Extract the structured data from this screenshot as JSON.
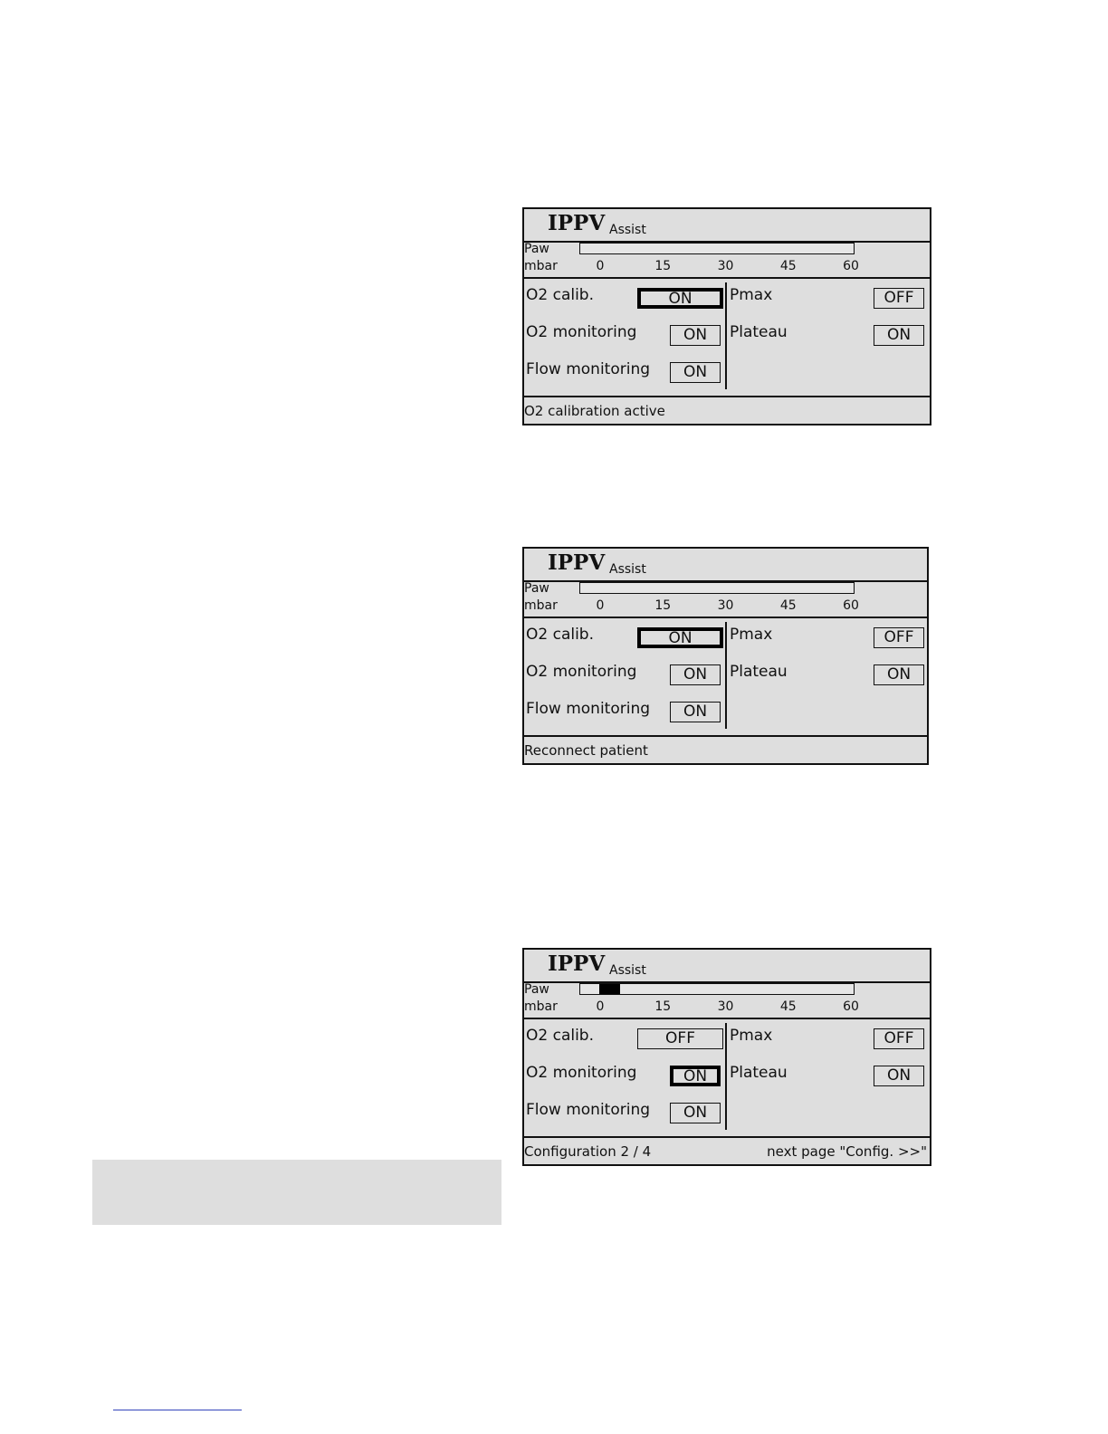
{
  "screens": [
    {
      "title": "IPPV",
      "subtitle": "Assist",
      "paw_label": "Paw",
      "unit_label": "mbar",
      "scale_ticks": [
        "0",
        "15",
        "30",
        "45",
        "60"
      ],
      "paw_level_mbar": 0,
      "left_settings": [
        {
          "label": "O2 calib.",
          "value": "ON",
          "selected": true
        },
        {
          "label": "O2 monitoring",
          "value": "ON",
          "selected": false
        },
        {
          "label": "Flow monitoring",
          "value": "ON",
          "selected": false
        }
      ],
      "right_settings": [
        {
          "label": "Pmax",
          "value": "OFF",
          "selected": false
        },
        {
          "label": "Plateau",
          "value": "ON",
          "selected": false
        }
      ],
      "status_left": "O2 calibration active",
      "status_right": ""
    },
    {
      "title": "IPPV",
      "subtitle": "Assist",
      "paw_label": "Paw",
      "unit_label": "mbar",
      "scale_ticks": [
        "0",
        "15",
        "30",
        "45",
        "60"
      ],
      "paw_level_mbar": 0,
      "left_settings": [
        {
          "label": "O2 calib.",
          "value": "ON",
          "selected": true
        },
        {
          "label": "O2 monitoring",
          "value": "ON",
          "selected": false
        },
        {
          "label": "Flow monitoring",
          "value": "ON",
          "selected": false
        }
      ],
      "right_settings": [
        {
          "label": "Pmax",
          "value": "OFF",
          "selected": false
        },
        {
          "label": "Plateau",
          "value": "ON",
          "selected": false
        }
      ],
      "status_left": "Reconnect patient",
      "status_right": ""
    },
    {
      "title": "IPPV",
      "subtitle": "Assist",
      "paw_label": "Paw",
      "unit_label": "mbar",
      "scale_ticks": [
        "0",
        "15",
        "30",
        "45",
        "60"
      ],
      "paw_level_mbar": 5,
      "left_settings": [
        {
          "label": "O2 calib.",
          "value": "OFF",
          "selected": false
        },
        {
          "label": "O2 monitoring",
          "value": "ON",
          "selected": true
        },
        {
          "label": "Flow monitoring",
          "value": "ON",
          "selected": false
        }
      ],
      "right_settings": [
        {
          "label": "Pmax",
          "value": "OFF",
          "selected": false
        },
        {
          "label": "Plateau",
          "value": "ON",
          "selected": false
        }
      ],
      "status_left": "Configuration  2 / 4",
      "status_right": "next page \"Config. >>\""
    }
  ]
}
